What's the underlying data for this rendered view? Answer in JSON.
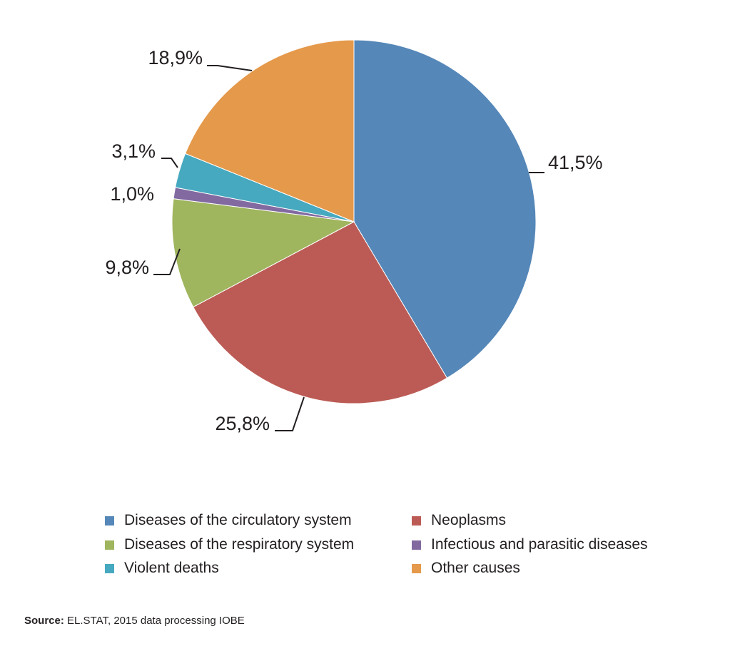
{
  "chart_data": {
    "type": "pie",
    "title": "",
    "slices": [
      {
        "name": "Diseases of the circulatory system",
        "value": 41.5,
        "label": "41,5%",
        "color": "#5587b8"
      },
      {
        "name": "Neoplasms",
        "value": 25.8,
        "label": "25,8%",
        "color": "#bc5b55"
      },
      {
        "name": "Diseases of the respiratory system",
        "value": 9.8,
        "label": "9,8%",
        "color": "#9fb55e"
      },
      {
        "name": "Infectious and parasitic diseases",
        "value": 1.0,
        "label": "1,0%",
        "color": "#826aa1"
      },
      {
        "name": "Violent deaths",
        "value": 3.1,
        "label": "3,1%",
        "color": "#46a9bf"
      },
      {
        "name": "Other causes",
        "value": 18.9,
        "label": "18,9%",
        "color": "#e5994b"
      }
    ],
    "start_angle_deg": 0,
    "direction": "clockwise",
    "legend_position": "bottom"
  },
  "source": {
    "prefix": "Source:",
    "text": " EL.STAT, 2015 data processing IOBE"
  }
}
